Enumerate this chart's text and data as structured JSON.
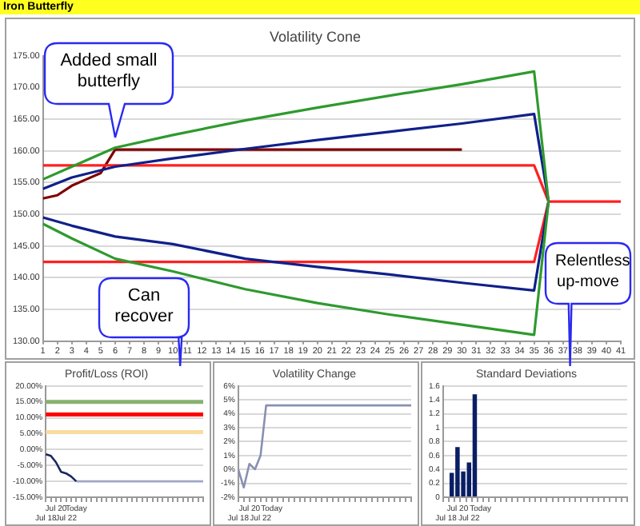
{
  "chart_data": [
    {
      "type": "line",
      "title": "Volatility Cone",
      "annotations": [
        "Iron Butterfly",
        "Added small butterfly"
      ],
      "xlim": [
        1,
        41
      ],
      "xticks": [
        1,
        2,
        3,
        4,
        5,
        6,
        7,
        8,
        9,
        10,
        11,
        12,
        13,
        14,
        15,
        16,
        17,
        18,
        19,
        20,
        21,
        22,
        23,
        24,
        25,
        26,
        27,
        28,
        29,
        30,
        31,
        32,
        33,
        34,
        35,
        36,
        37,
        38,
        39,
        40,
        41
      ],
      "ylim": [
        130,
        175
      ],
      "yticks": [
        {
          "value": 130,
          "label": "130.00"
        },
        {
          "value": 135,
          "label": "135.00"
        },
        {
          "value": 140,
          "label": "140.00"
        },
        {
          "value": 145,
          "label": "145.00"
        },
        {
          "value": 150,
          "label": "150.00"
        },
        {
          "value": 155,
          "label": "155.00"
        },
        {
          "value": 160,
          "label": "160.00"
        },
        {
          "value": 165,
          "label": "165.00"
        },
        {
          "value": 170,
          "label": "170.00"
        },
        {
          "value": 175,
          "label": "175.00"
        }
      ],
      "grid": "y",
      "legend": false,
      "series": [
        {
          "color": "#2e9a2e",
          "x": [
            1,
            3,
            6,
            10,
            15,
            20,
            25,
            30,
            35,
            36,
            35,
            30,
            25,
            20,
            15,
            10,
            6,
            3,
            1
          ],
          "values": [
            155.5,
            157.5,
            160.5,
            162.5,
            164.8,
            166.8,
            168.7,
            170.5,
            172.5,
            152,
            131,
            132.6,
            134.2,
            136,
            138.2,
            141,
            143,
            146.2,
            148.5
          ]
        },
        {
          "color": "#10208a",
          "x": [
            1,
            3,
            6,
            10,
            15,
            20,
            25,
            30,
            35,
            36,
            35,
            30,
            25,
            20,
            15,
            10,
            6,
            3,
            1
          ],
          "values": [
            154,
            155.8,
            157.5,
            158.8,
            160.3,
            161.7,
            163,
            164.3,
            165.8,
            152,
            138,
            139.2,
            140.5,
            141.7,
            143,
            145.3,
            146.5,
            148.2,
            149.5
          ]
        },
        {
          "color": "#ff2020",
          "x": [
            1,
            35,
            36,
            41,
            36,
            35,
            1
          ],
          "values": [
            157.7,
            157.7,
            152,
            152,
            152,
            142.5,
            142.5
          ]
        },
        {
          "color": "#800000",
          "x": [
            1,
            2,
            3,
            4,
            5,
            6,
            30
          ],
          "values": [
            152.5,
            153,
            154.5,
            155.5,
            156.5,
            160.2,
            160.2
          ]
        }
      ]
    },
    {
      "type": "line",
      "title": "Profit/Loss (ROI)",
      "annotations": [
        "Can recover"
      ],
      "categories": [
        "Jul 18",
        null,
        "Jul 20",
        null,
        "Jul 22",
        null,
        "Today",
        null,
        null,
        null,
        null,
        null,
        null,
        null,
        null,
        null,
        null,
        null,
        null,
        null,
        null,
        null,
        null,
        null,
        null,
        null,
        null,
        null,
        null,
        null,
        null,
        null
      ],
      "ylim": [
        -15,
        20
      ],
      "yticks": [
        {
          "value": -15,
          "label": "-15.00%"
        },
        {
          "value": -10,
          "label": "-10.00%"
        },
        {
          "value": -5,
          "label": "-5.00%"
        },
        {
          "value": 0,
          "label": "0.00%"
        },
        {
          "value": 5,
          "label": "5.00%"
        },
        {
          "value": 10,
          "label": "10.00%"
        },
        {
          "value": 15,
          "label": "15.00%"
        },
        {
          "value": 20,
          "label": "20.00%"
        }
      ],
      "grid": "y",
      "legend": false,
      "ref_lines": [
        {
          "axis": "y",
          "value": 15,
          "color": "#88b070"
        },
        {
          "axis": "y",
          "value": 11,
          "color": "#ff0000"
        },
        {
          "axis": "y",
          "value": 5.5,
          "color": "#f8dca0"
        }
      ],
      "series": [
        {
          "color": "#1a2660",
          "values": [
            -1.5,
            -2,
            -4,
            -7,
            -7.5,
            -8.5,
            -10,
            null,
            null,
            null,
            null,
            null,
            null,
            null,
            null,
            null,
            null,
            null,
            null,
            null,
            null,
            null,
            null,
            null,
            null,
            null,
            null,
            null,
            null,
            null,
            null,
            null
          ]
        },
        {
          "color": "#a0a8c8",
          "values": [
            null,
            null,
            null,
            null,
            null,
            null,
            -10,
            -10,
            -10,
            -10,
            -10,
            -10,
            -10,
            -10,
            -10,
            -10,
            -10,
            -10,
            -10,
            -10,
            -10,
            -10,
            -10,
            -10,
            -10,
            -10,
            -10,
            -10,
            -10,
            -10,
            -10,
            -10
          ]
        }
      ]
    },
    {
      "type": "line",
      "title": "Volatility Change",
      "categories": [
        "Jul 18",
        null,
        "Jul 20",
        null,
        "Jul 22",
        null,
        "Today",
        null,
        null,
        null,
        null,
        null,
        null,
        null,
        null,
        null,
        null,
        null,
        null,
        null,
        null,
        null,
        null,
        null,
        null,
        null,
        null,
        null,
        null,
        null,
        null,
        null
      ],
      "ylim": [
        -2,
        6
      ],
      "yticks": [
        {
          "value": -2,
          "label": "-2%"
        },
        {
          "value": -1,
          "label": "-1%"
        },
        {
          "value": 0,
          "label": "0%"
        },
        {
          "value": 1,
          "label": "1%"
        },
        {
          "value": 2,
          "label": "2%"
        },
        {
          "value": 3,
          "label": "3%"
        },
        {
          "value": 4,
          "label": "4%"
        },
        {
          "value": 5,
          "label": "5%"
        },
        {
          "value": 6,
          "label": "6%"
        }
      ],
      "grid": "y",
      "legend": false,
      "series": [
        {
          "color": "#8890b0",
          "values": [
            0,
            -1.3,
            0.4,
            0,
            1,
            4.6,
            4.6,
            4.6,
            4.6,
            4.6,
            4.6,
            4.6,
            4.6,
            4.6,
            4.6,
            4.6,
            4.6,
            4.6,
            4.6,
            4.6,
            4.6,
            4.6,
            4.6,
            4.6,
            4.6,
            4.6,
            4.6,
            4.6,
            4.6,
            4.6,
            4.6,
            4.6
          ]
        }
      ]
    },
    {
      "type": "bar",
      "title": "Standard Deviations",
      "annotations": [
        "Relentless up-move"
      ],
      "categories": [
        "Jul 18",
        null,
        "Jul 20",
        null,
        "Jul 22",
        null,
        "Today",
        null,
        null,
        null,
        null,
        null,
        null,
        null,
        null,
        null,
        null,
        null,
        null,
        null,
        null,
        null,
        null,
        null,
        null,
        null,
        null,
        null,
        null,
        null,
        null,
        null
      ],
      "ylim": [
        0,
        1.6
      ],
      "yticks": [
        0,
        0.2,
        0.4,
        0.6,
        0.8,
        1,
        1.2,
        1.4,
        1.6
      ],
      "grid": "y",
      "legend": false,
      "series": [
        {
          "color": "#0a1e64",
          "values": [
            null,
            0.35,
            0.72,
            0.37,
            0.5,
            1.48,
            null,
            null,
            null,
            null,
            null,
            null,
            null,
            null,
            null,
            null,
            null,
            null,
            null,
            null,
            null,
            null,
            null,
            null,
            null,
            null,
            null,
            null,
            null,
            null,
            null,
            null
          ]
        }
      ]
    }
  ]
}
